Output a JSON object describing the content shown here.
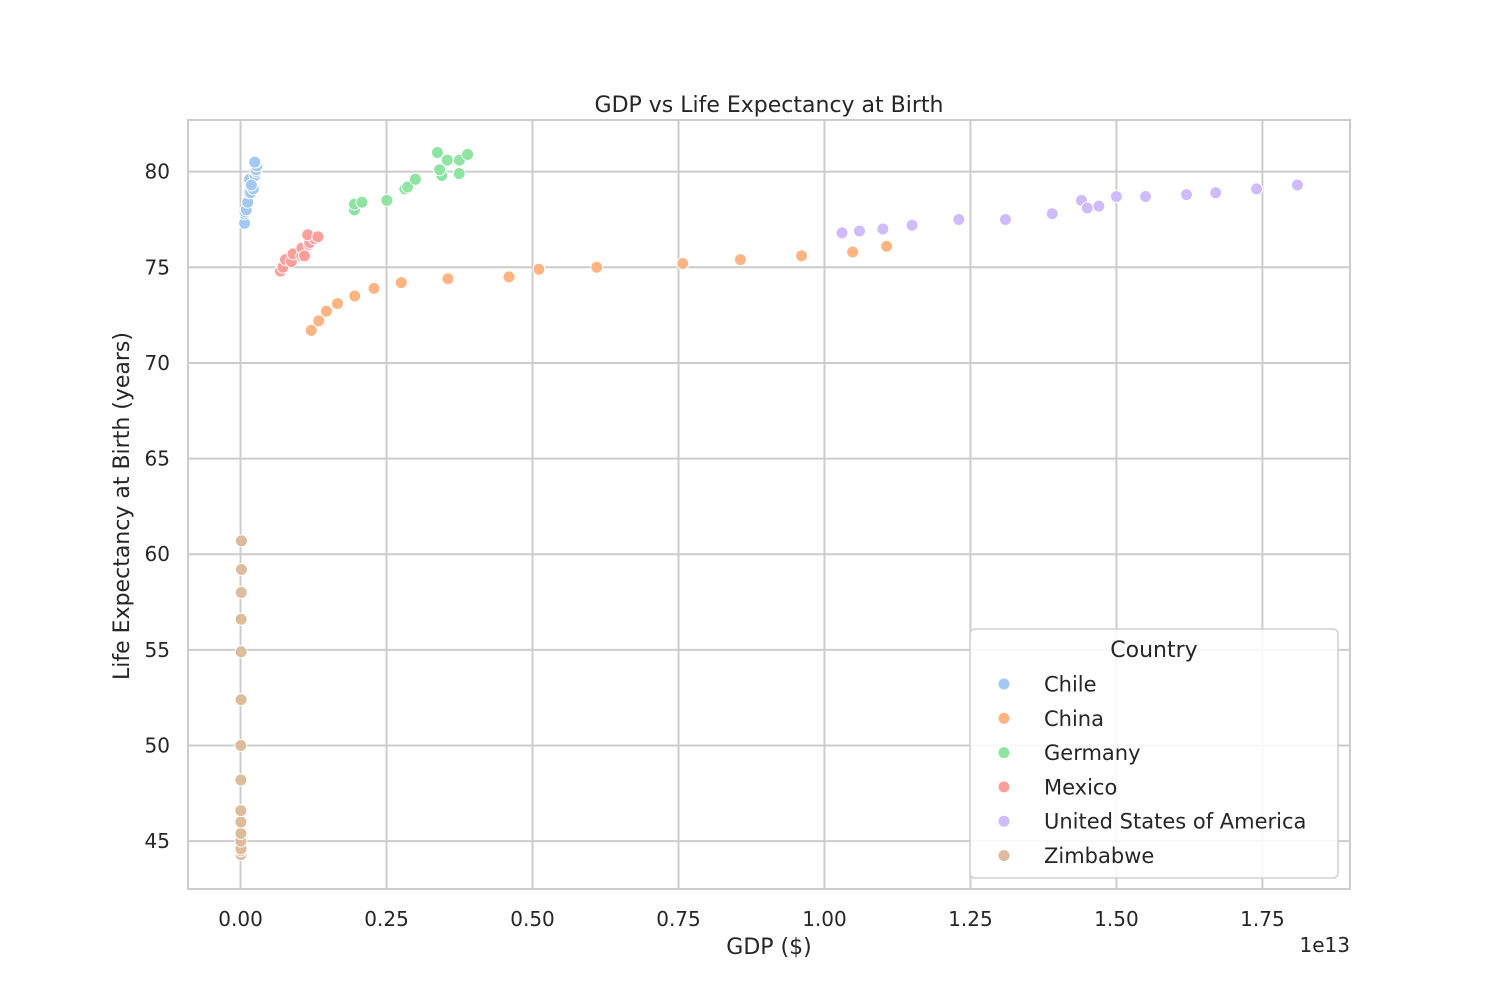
{
  "chart_data": {
    "type": "scatter",
    "title": "GDP vs Life Expectancy at Birth",
    "xlabel": "GDP ($)",
    "ylabel": "Life Expectancy at Birth (years)",
    "x_offset_label": "1e13",
    "x_unit_multiplier": 10000000000000,
    "xlim": [
      -0.09,
      1.9
    ],
    "ylim": [
      42.5,
      82.7
    ],
    "x_ticks": [
      0.0,
      0.25,
      0.5,
      0.75,
      1.0,
      1.25,
      1.5,
      1.75
    ],
    "x_tick_labels": [
      "0.00",
      "0.25",
      "0.50",
      "0.75",
      "1.00",
      "1.25",
      "1.50",
      "1.75"
    ],
    "y_ticks": [
      45,
      50,
      55,
      60,
      65,
      70,
      75,
      80
    ],
    "y_tick_labels": [
      "45",
      "50",
      "55",
      "60",
      "65",
      "70",
      "75",
      "80"
    ],
    "grid": true,
    "legend": {
      "title": "Country",
      "placement": "lower right"
    },
    "series": [
      {
        "name": "Chile",
        "color": "#a1c9f4",
        "points": [
          {
            "x": 0.0069,
            "y": 77.3
          },
          {
            "x": 0.007,
            "y": 77.8
          },
          {
            "x": 0.0077,
            "y": 77.9
          },
          {
            "x": 0.0099,
            "y": 78.0
          },
          {
            "x": 0.0123,
            "y": 78.4
          },
          {
            "x": 0.0147,
            "y": 78.9
          },
          {
            "x": 0.0173,
            "y": 78.9
          },
          {
            "x": 0.0154,
            "y": 79.6
          },
          {
            "x": 0.0217,
            "y": 79.1
          },
          {
            "x": 0.0248,
            "y": 79.8
          },
          {
            "x": 0.0267,
            "y": 80.0
          },
          {
            "x": 0.0265,
            "y": 80.1
          },
          {
            "x": 0.0278,
            "y": 80.3
          },
          {
            "x": 0.0259,
            "y": 80.5
          },
          {
            "x": 0.0243,
            "y": 80.5
          },
          {
            "x": 0.0185,
            "y": 79.3
          }
        ]
      },
      {
        "name": "China",
        "color": "#ffb482",
        "points": [
          {
            "x": 0.1211,
            "y": 71.7
          },
          {
            "x": 0.1339,
            "y": 72.2
          },
          {
            "x": 0.1471,
            "y": 72.7
          },
          {
            "x": 0.166,
            "y": 73.1
          },
          {
            "x": 0.1955,
            "y": 73.5
          },
          {
            "x": 0.2286,
            "y": 73.9
          },
          {
            "x": 0.2752,
            "y": 74.2
          },
          {
            "x": 0.3552,
            "y": 74.4
          },
          {
            "x": 0.4598,
            "y": 74.5
          },
          {
            "x": 0.511,
            "y": 74.9
          },
          {
            "x": 0.61,
            "y": 75.0
          },
          {
            "x": 0.7573,
            "y": 75.2
          },
          {
            "x": 0.8561,
            "y": 75.4
          },
          {
            "x": 0.9607,
            "y": 75.6
          },
          {
            "x": 1.0482,
            "y": 75.8
          },
          {
            "x": 1.1065,
            "y": 76.1
          }
        ]
      },
      {
        "name": "Germany",
        "color": "#8de5a1",
        "points": [
          {
            "x": 0.195,
            "y": 78.0
          },
          {
            "x": 0.195,
            "y": 78.3
          },
          {
            "x": 0.2079,
            "y": 78.4
          },
          {
            "x": 0.2506,
            "y": 78.5
          },
          {
            "x": 0.2815,
            "y": 79.1
          },
          {
            "x": 0.2861,
            "y": 79.2
          },
          {
            "x": 0.2994,
            "y": 79.6
          },
          {
            "x": 0.3446,
            "y": 79.8
          },
          {
            "x": 0.3409,
            "y": 80.1
          },
          {
            "x": 0.3745,
            "y": 79.9
          },
          {
            "x": 0.354,
            "y": 80.6
          },
          {
            "x": 0.3372,
            "y": 81.0
          },
          {
            "x": 0.3748,
            "y": 80.6
          },
          {
            "x": 0.3888,
            "y": 80.9
          }
        ]
      },
      {
        "name": "Mexico",
        "color": "#ff9f9b",
        "points": [
          {
            "x": 0.0684,
            "y": 74.8
          },
          {
            "x": 0.0726,
            "y": 75.0
          },
          {
            "x": 0.077,
            "y": 75.4
          },
          {
            "x": 0.087,
            "y": 75.3
          },
          {
            "x": 0.0899,
            "y": 75.7
          },
          {
            "x": 0.1049,
            "y": 75.6
          },
          {
            "x": 0.1051,
            "y": 76.0
          },
          {
            "x": 0.1095,
            "y": 75.6
          },
          {
            "x": 0.1171,
            "y": 76.2
          },
          {
            "x": 0.1186,
            "y": 76.3
          },
          {
            "x": 0.1262,
            "y": 76.5
          },
          {
            "x": 0.115,
            "y": 76.7
          },
          {
            "x": 0.1325,
            "y": 76.6
          }
        ]
      },
      {
        "name": "United States of America",
        "color": "#d0bbff",
        "points": [
          {
            "x": 1.03,
            "y": 76.8
          },
          {
            "x": 1.06,
            "y": 76.9
          },
          {
            "x": 1.1,
            "y": 77.0
          },
          {
            "x": 1.15,
            "y": 77.2
          },
          {
            "x": 1.23,
            "y": 77.5
          },
          {
            "x": 1.31,
            "y": 77.5
          },
          {
            "x": 1.39,
            "y": 77.8
          },
          {
            "x": 1.44,
            "y": 78.5
          },
          {
            "x": 1.45,
            "y": 78.1
          },
          {
            "x": 1.47,
            "y": 78.2
          },
          {
            "x": 1.5,
            "y": 78.7
          },
          {
            "x": 1.55,
            "y": 78.7
          },
          {
            "x": 1.62,
            "y": 78.8
          },
          {
            "x": 1.67,
            "y": 78.9
          },
          {
            "x": 1.74,
            "y": 79.1
          },
          {
            "x": 1.81,
            "y": 79.3
          }
        ]
      },
      {
        "name": "Zimbabwe",
        "color": "#debb9b",
        "points": [
          {
            "x": 0.0007,
            "y": 44.3
          },
          {
            "x": 0.0007,
            "y": 44.5
          },
          {
            "x": 0.0007,
            "y": 44.6
          },
          {
            "x": 0.0006,
            "y": 45.0
          },
          {
            "x": 0.0006,
            "y": 45.4
          },
          {
            "x": 0.0006,
            "y": 46.0
          },
          {
            "x": 0.0004,
            "y": 46.6
          },
          {
            "x": 0.0006,
            "y": 48.2
          },
          {
            "x": 0.0005,
            "y": 50.0
          },
          {
            "x": 0.0009,
            "y": 52.4
          },
          {
            "x": 0.001,
            "y": 54.9
          },
          {
            "x": 0.001,
            "y": 56.6
          },
          {
            "x": 0.0012,
            "y": 58.0
          },
          {
            "x": 0.0016,
            "y": 59.2
          },
          {
            "x": 0.0016,
            "y": 60.7
          }
        ]
      }
    ]
  }
}
